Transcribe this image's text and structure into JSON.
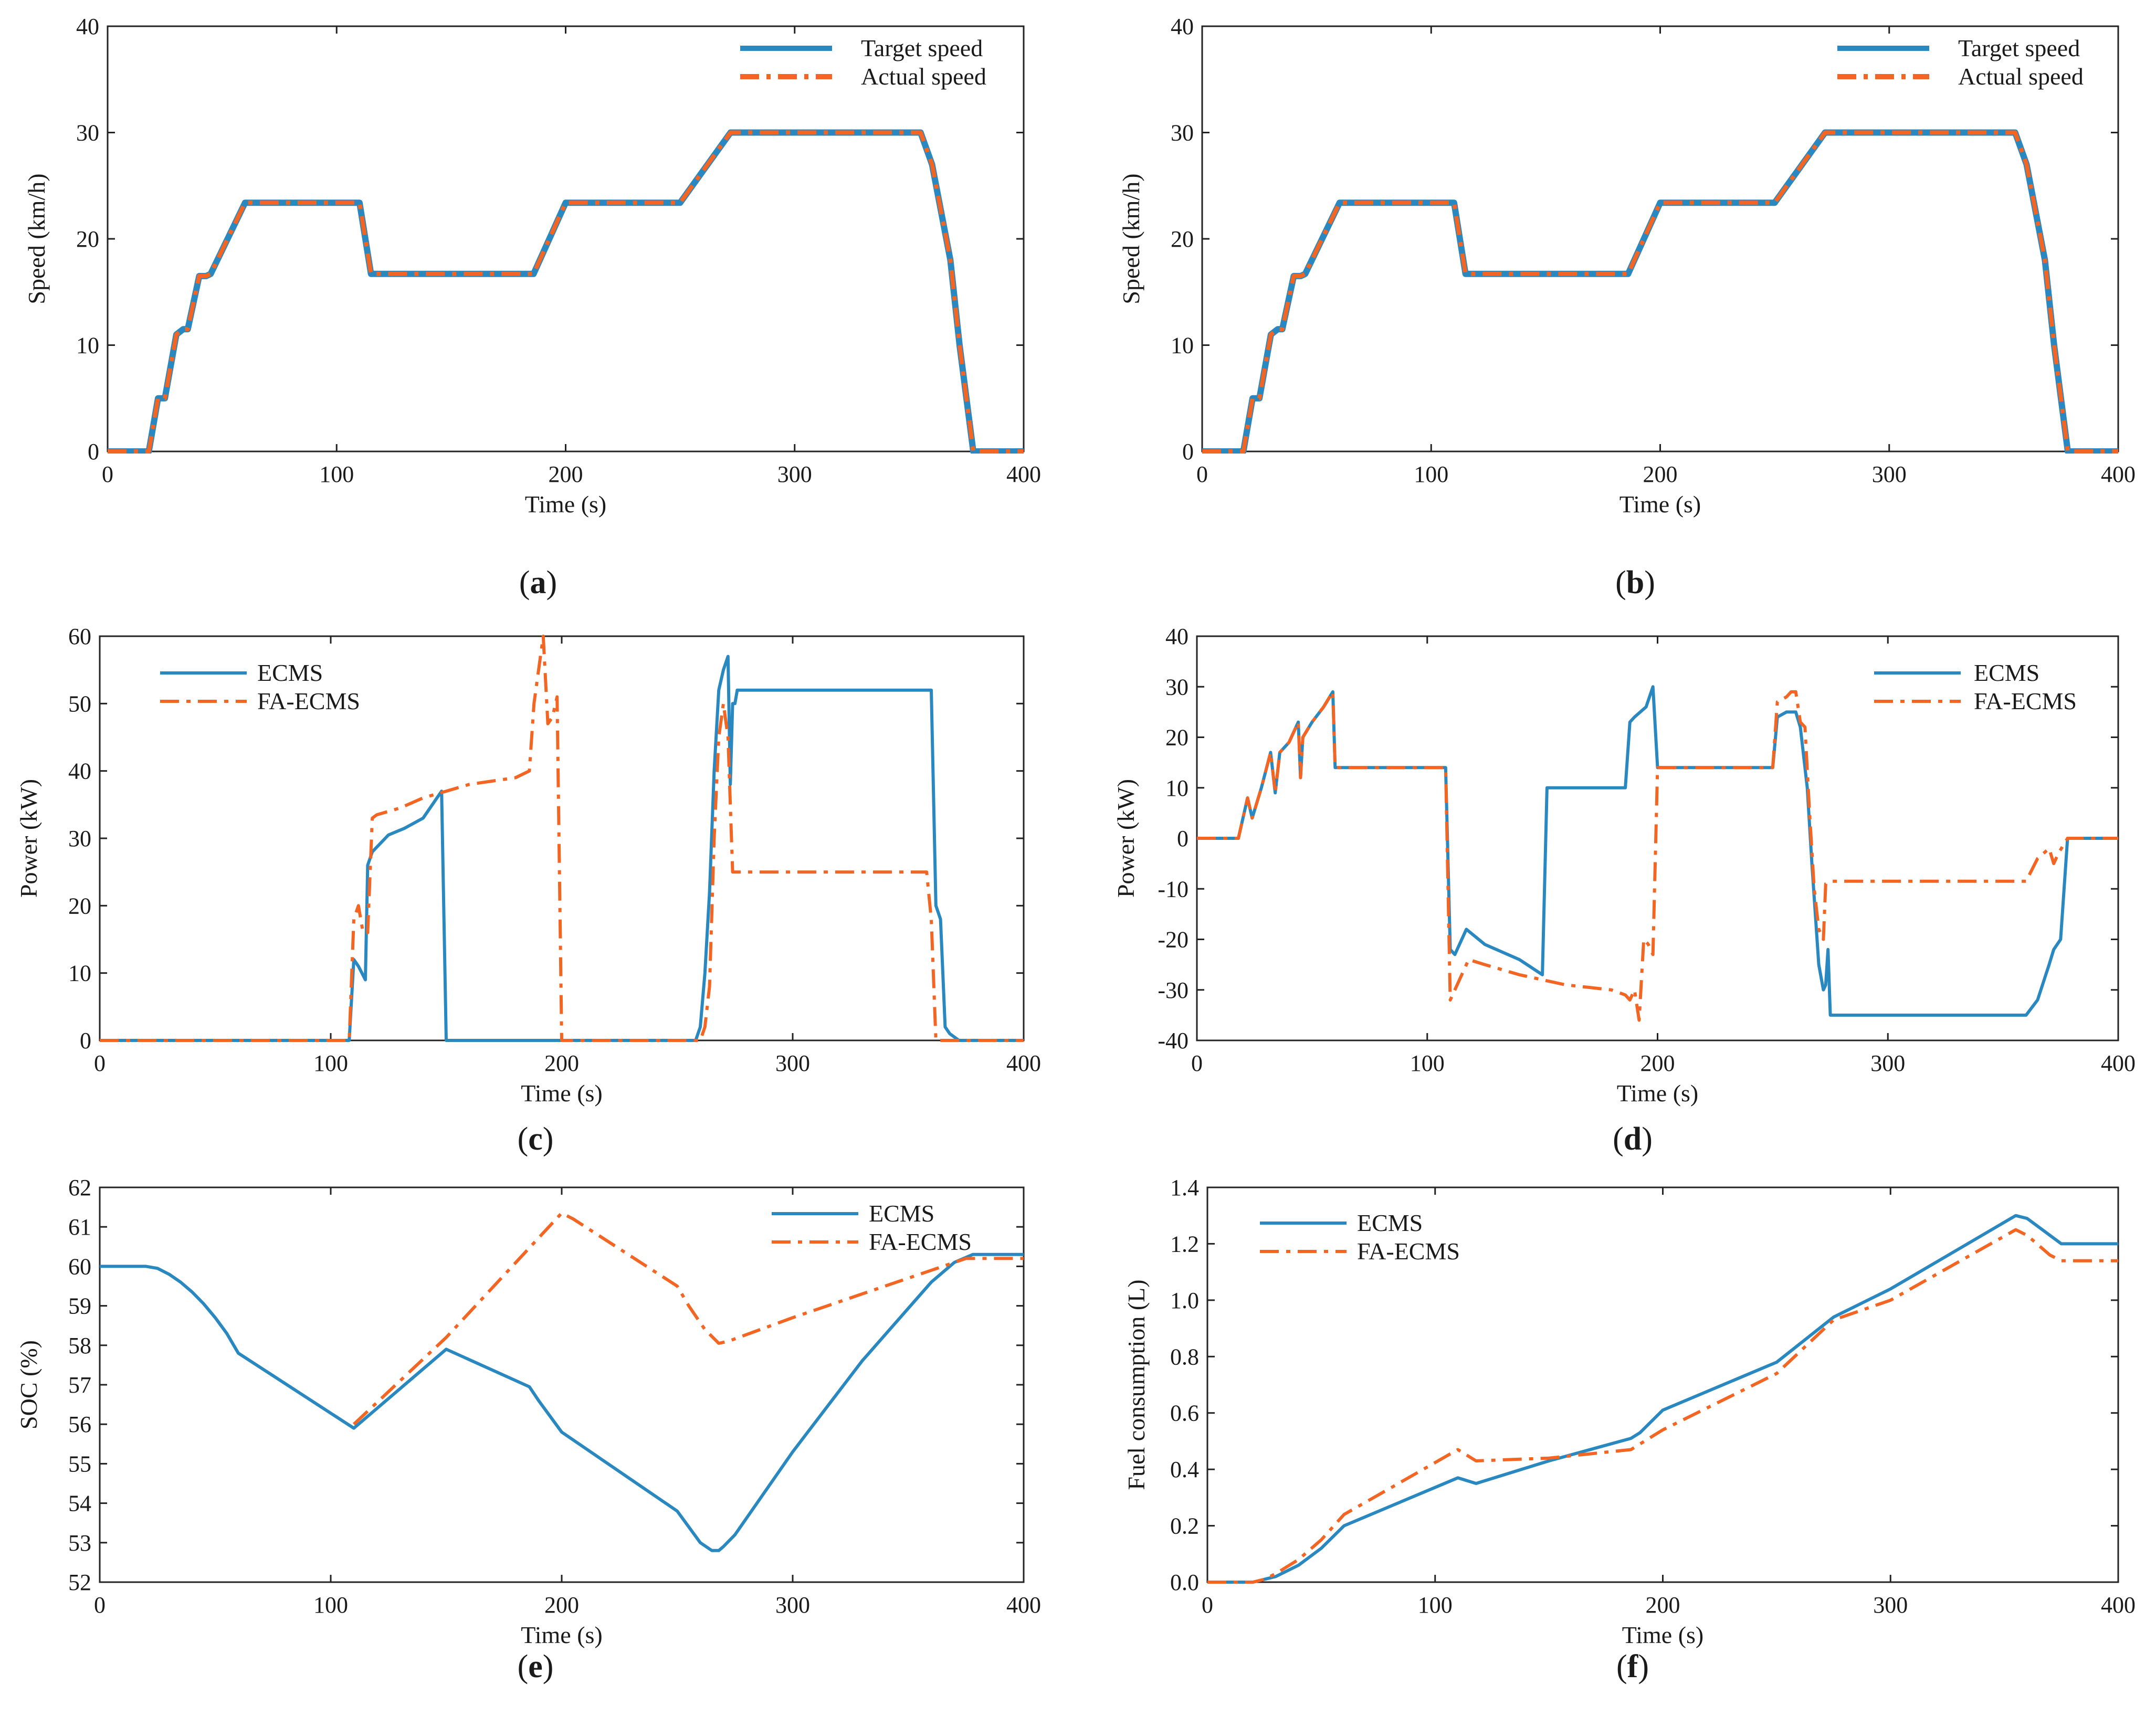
{
  "figure_title": "",
  "colors": {
    "series_1": "#2a88c0",
    "series_2": "#f26522",
    "axis": "#222222"
  },
  "chart_data": [
    {
      "id": "a",
      "caption": "a",
      "type": "line",
      "xlabel": "Time (s)",
      "ylabel": "Speed  (km/h)",
      "xlim": [
        0,
        400
      ],
      "ylim": [
        0,
        40
      ],
      "xticks": [
        0,
        100,
        200,
        300,
        400
      ],
      "yticks": [
        0,
        10,
        20,
        30,
        40
      ],
      "legend_position": "top-right",
      "series": [
        {
          "name": "Target speed",
          "style": "solid",
          "x": [
            0,
            18,
            22,
            25,
            30,
            33,
            35,
            40,
            43,
            45,
            60,
            110,
            115,
            186,
            200,
            250,
            272,
            355,
            360,
            368,
            372,
            378,
            400
          ],
          "y": [
            0,
            0,
            5,
            5,
            11,
            11.5,
            11.5,
            16.5,
            16.5,
            16.7,
            23.4,
            23.4,
            16.7,
            16.7,
            23.4,
            23.4,
            30,
            30,
            27,
            18,
            10,
            0,
            0
          ]
        },
        {
          "name": "Actual speed",
          "style": "dashdot",
          "x": [
            0,
            18,
            22,
            25,
            30,
            33,
            35,
            40,
            43,
            45,
            60,
            110,
            115,
            186,
            200,
            250,
            272,
            355,
            360,
            368,
            372,
            378,
            400
          ],
          "y": [
            0,
            0,
            5,
            5,
            11,
            11.5,
            11.5,
            16.5,
            16.5,
            16.7,
            23.4,
            23.4,
            16.7,
            16.7,
            23.4,
            23.4,
            30,
            30,
            27,
            18,
            10,
            0,
            0
          ]
        }
      ]
    },
    {
      "id": "b",
      "caption": "b",
      "type": "line",
      "xlabel": "Time (s)",
      "ylabel": "Speed  (km/h)",
      "xlim": [
        0,
        400
      ],
      "ylim": [
        0,
        40
      ],
      "xticks": [
        0,
        100,
        200,
        300,
        400
      ],
      "yticks": [
        0,
        10,
        20,
        30,
        40
      ],
      "legend_position": "top-right",
      "series": [
        {
          "name": "Target speed",
          "style": "solid",
          "x": [
            0,
            18,
            22,
            25,
            30,
            33,
            35,
            40,
            43,
            45,
            60,
            110,
            115,
            186,
            200,
            250,
            272,
            355,
            360,
            368,
            372,
            378,
            400
          ],
          "y": [
            0,
            0,
            5,
            5,
            11,
            11.5,
            11.5,
            16.5,
            16.5,
            16.7,
            23.4,
            23.4,
            16.7,
            16.7,
            23.4,
            23.4,
            30,
            30,
            27,
            18,
            10,
            0,
            0
          ]
        },
        {
          "name": "Actual speed",
          "style": "dashdot",
          "x": [
            0,
            18,
            22,
            25,
            30,
            33,
            35,
            40,
            43,
            45,
            60,
            110,
            115,
            186,
            200,
            250,
            272,
            355,
            360,
            368,
            372,
            378,
            400
          ],
          "y": [
            0,
            0,
            5,
            5,
            11,
            11.5,
            11.5,
            16.5,
            16.5,
            16.7,
            23.4,
            23.4,
            16.7,
            16.7,
            23.4,
            23.4,
            30,
            30,
            27,
            18,
            10,
            0,
            0
          ]
        }
      ]
    },
    {
      "id": "c",
      "caption": "c",
      "type": "line",
      "xlabel": "Time (s)",
      "ylabel": "Power  (kW)",
      "xlim": [
        0,
        400
      ],
      "ylim": [
        0,
        60
      ],
      "xticks": [
        0,
        100,
        200,
        300,
        400
      ],
      "yticks": [
        0,
        10,
        20,
        30,
        40,
        50,
        60
      ],
      "legend_position": "top-left",
      "series": [
        {
          "name": "ECMS",
          "style": "solid",
          "x": [
            0,
            108,
            110,
            112,
            115,
            116,
            118,
            125,
            132,
            140,
            148,
            150,
            152,
            258,
            260,
            262,
            264,
            266,
            268,
            270,
            272,
            273,
            274,
            275,
            276,
            278,
            360,
            362,
            364,
            366,
            368,
            372,
            400
          ],
          "y": [
            0,
            0,
            12,
            11,
            9,
            26,
            28,
            30.5,
            31.5,
            33,
            37,
            0,
            0,
            0,
            2,
            10,
            22,
            40,
            52,
            55,
            57,
            38,
            50,
            50,
            52,
            52,
            52,
            20,
            18,
            2,
            1,
            0,
            0
          ]
        },
        {
          "name": "FA-ECMS",
          "style": "dashdot",
          "x": [
            0,
            108,
            110,
            112,
            114,
            116,
            118,
            120,
            130,
            140,
            150,
            160,
            170,
            180,
            186,
            188,
            190,
            192,
            194,
            196,
            198,
            200,
            202,
            260,
            262,
            264,
            266,
            268,
            270,
            272,
            274,
            276,
            280,
            355,
            358,
            360,
            362,
            400
          ],
          "y": [
            0,
            0,
            18,
            20,
            16,
            16,
            33,
            33.5,
            34.5,
            36,
            37,
            38,
            38.5,
            39,
            40,
            50,
            55,
            60,
            47,
            48,
            51,
            0,
            0,
            0,
            2,
            8,
            30,
            45,
            50,
            45,
            25,
            25,
            25,
            25,
            25,
            18,
            0,
            0
          ]
        }
      ]
    },
    {
      "id": "d",
      "caption": "d",
      "type": "line",
      "xlabel": "Time (s)",
      "ylabel": "Power  (kW)",
      "xlim": [
        0,
        400
      ],
      "ylim": [
        -40,
        40
      ],
      "xticks": [
        0,
        100,
        200,
        300,
        400
      ],
      "yticks": [
        -40,
        -30,
        -20,
        -10,
        0,
        10,
        20,
        30,
        40
      ],
      "legend_position": "top-right",
      "series": [
        {
          "name": "ECMS",
          "style": "solid",
          "x": [
            0,
            18,
            22,
            24,
            28,
            32,
            34,
            36,
            40,
            44,
            45,
            46,
            50,
            55,
            59,
            60,
            108,
            110,
            112,
            117,
            125,
            140,
            150,
            152,
            186,
            188,
            190,
            195,
            198,
            200,
            250,
            252,
            256,
            260,
            262,
            265,
            267,
            270,
            272,
            273,
            274,
            275,
            276,
            355,
            360,
            365,
            370,
            372,
            375,
            378,
            400
          ],
          "y": [
            0,
            0,
            8,
            4,
            10,
            17,
            9,
            17,
            19,
            23,
            12,
            20,
            23,
            26,
            29,
            14,
            14,
            -22,
            -23,
            -18,
            -21,
            -24,
            -27,
            10,
            10,
            23,
            24,
            26,
            30,
            14,
            14,
            24,
            25,
            25,
            22,
            10,
            -5,
            -25,
            -30,
            -29,
            -22,
            -35,
            -35,
            -35,
            -35,
            -32,
            -25,
            -22,
            -20,
            0,
            0
          ]
        },
        {
          "name": "FA-ECMS",
          "style": "dashdot",
          "x": [
            0,
            18,
            22,
            24,
            28,
            32,
            34,
            36,
            40,
            44,
            45,
            46,
            50,
            55,
            59,
            60,
            108,
            110,
            112,
            118,
            125,
            140,
            150,
            160,
            170,
            180,
            186,
            188,
            190,
            192,
            194,
            196,
            198,
            200,
            250,
            252,
            256,
            258,
            260,
            262,
            264,
            266,
            268,
            270,
            272,
            273,
            275,
            276,
            355,
            360,
            365,
            370,
            372,
            374,
            378,
            400
          ],
          "y": [
            0,
            0,
            8,
            4,
            10,
            17,
            9,
            17,
            19,
            23,
            12,
            20,
            23,
            26,
            29,
            14,
            14,
            -32,
            -30,
            -24,
            -25,
            -27,
            -28,
            -29,
            -29.5,
            -30,
            -31,
            -32,
            -30,
            -36,
            -20,
            -21,
            -23,
            14,
            14,
            27,
            28,
            29,
            29,
            23,
            22,
            5,
            -10,
            -18,
            -20,
            -9,
            -8.5,
            -8.5,
            -8.5,
            -8.5,
            -4,
            -2,
            -5,
            -3,
            0,
            0
          ]
        }
      ]
    },
    {
      "id": "e",
      "caption": "e",
      "type": "line",
      "xlabel": "Time (s)",
      "ylabel": "SOC  (%)",
      "xlim": [
        0,
        400
      ],
      "ylim": [
        52,
        62
      ],
      "xticks": [
        0,
        100,
        200,
        300,
        400
      ],
      "yticks": [
        52,
        53,
        54,
        55,
        56,
        57,
        58,
        59,
        60,
        61,
        62
      ],
      "legend_position": "top-right",
      "series": [
        {
          "name": "ECMS",
          "style": "solid",
          "x": [
            0,
            20,
            25,
            30,
            35,
            40,
            45,
            50,
            55,
            60,
            110,
            120,
            150,
            186,
            190,
            200,
            250,
            255,
            260,
            265,
            268,
            270,
            275,
            300,
            330,
            360,
            370,
            378,
            400
          ],
          "y": [
            60,
            60,
            59.95,
            59.8,
            59.6,
            59.35,
            59.05,
            58.7,
            58.3,
            57.8,
            55.9,
            56.4,
            57.9,
            56.95,
            56.6,
            55.8,
            53.8,
            53.4,
            53.0,
            52.8,
            52.8,
            52.9,
            53.2,
            55.3,
            57.6,
            59.6,
            60.1,
            60.3,
            60.3
          ]
        },
        {
          "name": "FA-ECMS",
          "style": "dashdot",
          "x": [
            110,
            150,
            200,
            205,
            250,
            255,
            262,
            268,
            272,
            300,
            340,
            375,
            400
          ],
          "y": [
            56.0,
            58.2,
            61.35,
            61.2,
            59.5,
            59.0,
            58.4,
            58.05,
            58.1,
            58.7,
            59.5,
            60.2,
            60.2
          ]
        }
      ]
    },
    {
      "id": "f",
      "caption": "f",
      "type": "line",
      "xlabel": "Time (s)",
      "ylabel": "Fuel consumption (L)",
      "xlim": [
        0,
        400
      ],
      "ylim": [
        0.0,
        1.4
      ],
      "xticks": [
        0,
        100,
        200,
        300,
        400
      ],
      "yticks": [
        0.0,
        0.2,
        0.4,
        0.6,
        0.8,
        1.0,
        1.2,
        1.4
      ],
      "ytick_labels": [
        "0.0",
        "0.2",
        "0.4",
        "0.6",
        "0.8",
        "1.0",
        "1.2",
        "1.4"
      ],
      "legend_position": "top-left",
      "series": [
        {
          "name": "ECMS",
          "style": "solid",
          "x": [
            0,
            20,
            25,
            30,
            40,
            50,
            60,
            110,
            118,
            150,
            186,
            190,
            200,
            250,
            275,
            300,
            355,
            360,
            370,
            375,
            400
          ],
          "y": [
            0,
            0,
            0.01,
            0.02,
            0.06,
            0.12,
            0.2,
            0.37,
            0.35,
            0.43,
            0.51,
            0.53,
            0.61,
            0.78,
            0.94,
            1.04,
            1.3,
            1.29,
            1.23,
            1.2,
            1.2
          ]
        },
        {
          "name": "FA-ECMS",
          "style": "dashdot",
          "x": [
            0,
            20,
            25,
            30,
            40,
            50,
            60,
            110,
            118,
            150,
            186,
            190,
            200,
            250,
            275,
            300,
            355,
            360,
            370,
            375,
            400
          ],
          "y": [
            0,
            0,
            0.01,
            0.03,
            0.08,
            0.15,
            0.24,
            0.47,
            0.43,
            0.44,
            0.47,
            0.49,
            0.54,
            0.74,
            0.93,
            1.0,
            1.25,
            1.23,
            1.16,
            1.14,
            1.14
          ]
        }
      ]
    }
  ]
}
